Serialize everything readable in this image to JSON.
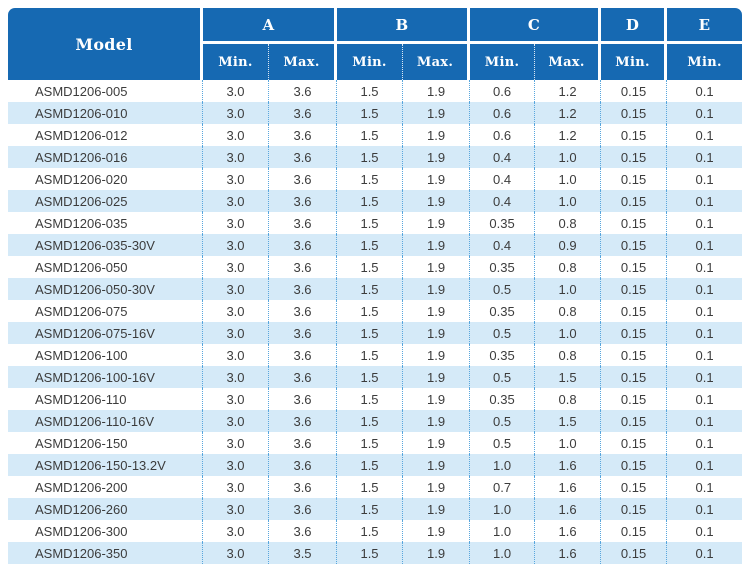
{
  "table": {
    "model_header": "Model",
    "groups": [
      {
        "label": "A",
        "subs": [
          "Min.",
          "Max."
        ]
      },
      {
        "label": "B",
        "subs": [
          "Min.",
          "Max."
        ]
      },
      {
        "label": "C",
        "subs": [
          "Min.",
          "Max."
        ]
      },
      {
        "label": "D",
        "subs": [
          "Min."
        ]
      },
      {
        "label": "E",
        "subs": [
          "Min."
        ]
      }
    ],
    "rows": [
      {
        "model": "ASMD1206-005",
        "values": [
          "3.0",
          "3.6",
          "1.5",
          "1.9",
          "0.6",
          "1.2",
          "0.15",
          "0.1"
        ]
      },
      {
        "model": "ASMD1206-010",
        "values": [
          "3.0",
          "3.6",
          "1.5",
          "1.9",
          "0.6",
          "1.2",
          "0.15",
          "0.1"
        ]
      },
      {
        "model": "ASMD1206-012",
        "values": [
          "3.0",
          "3.6",
          "1.5",
          "1.9",
          "0.6",
          "1.2",
          "0.15",
          "0.1"
        ]
      },
      {
        "model": "ASMD1206-016",
        "values": [
          "3.0",
          "3.6",
          "1.5",
          "1.9",
          "0.4",
          "1.0",
          "0.15",
          "0.1"
        ]
      },
      {
        "model": "ASMD1206-020",
        "values": [
          "3.0",
          "3.6",
          "1.5",
          "1.9",
          "0.4",
          "1.0",
          "0.15",
          "0.1"
        ]
      },
      {
        "model": "ASMD1206-025",
        "values": [
          "3.0",
          "3.6",
          "1.5",
          "1.9",
          "0.4",
          "1.0",
          "0.15",
          "0.1"
        ]
      },
      {
        "model": "ASMD1206-035",
        "values": [
          "3.0",
          "3.6",
          "1.5",
          "1.9",
          "0.35",
          "0.8",
          "0.15",
          "0.1"
        ]
      },
      {
        "model": "ASMD1206-035-30V",
        "values": [
          "3.0",
          "3.6",
          "1.5",
          "1.9",
          "0.4",
          "0.9",
          "0.15",
          "0.1"
        ]
      },
      {
        "model": "ASMD1206-050",
        "values": [
          "3.0",
          "3.6",
          "1.5",
          "1.9",
          "0.35",
          "0.8",
          "0.15",
          "0.1"
        ]
      },
      {
        "model": "ASMD1206-050-30V",
        "values": [
          "3.0",
          "3.6",
          "1.5",
          "1.9",
          "0.5",
          "1.0",
          "0.15",
          "0.1"
        ]
      },
      {
        "model": "ASMD1206-075",
        "values": [
          "3.0",
          "3.6",
          "1.5",
          "1.9",
          "0.35",
          "0.8",
          "0.15",
          "0.1"
        ]
      },
      {
        "model": "ASMD1206-075-16V",
        "values": [
          "3.0",
          "3.6",
          "1.5",
          "1.9",
          "0.5",
          "1.0",
          "0.15",
          "0.1"
        ]
      },
      {
        "model": "ASMD1206-100",
        "values": [
          "3.0",
          "3.6",
          "1.5",
          "1.9",
          "0.35",
          "0.8",
          "0.15",
          "0.1"
        ]
      },
      {
        "model": "ASMD1206-100-16V",
        "values": [
          "3.0",
          "3.6",
          "1.5",
          "1.9",
          "0.5",
          "1.5",
          "0.15",
          "0.1"
        ]
      },
      {
        "model": "ASMD1206-110",
        "values": [
          "3.0",
          "3.6",
          "1.5",
          "1.9",
          "0.35",
          "0.8",
          "0.15",
          "0.1"
        ]
      },
      {
        "model": "ASMD1206-110-16V",
        "values": [
          "3.0",
          "3.6",
          "1.5",
          "1.9",
          "0.5",
          "1.5",
          "0.15",
          "0.1"
        ]
      },
      {
        "model": "ASMD1206-150",
        "values": [
          "3.0",
          "3.6",
          "1.5",
          "1.9",
          "0.5",
          "1.0",
          "0.15",
          "0.1"
        ]
      },
      {
        "model": "ASMD1206-150-13.2V",
        "values": [
          "3.0",
          "3.6",
          "1.5",
          "1.9",
          "1.0",
          "1.6",
          "0.15",
          "0.1"
        ]
      },
      {
        "model": "ASMD1206-200",
        "values": [
          "3.0",
          "3.6",
          "1.5",
          "1.9",
          "0.7",
          "1.6",
          "0.15",
          "0.1"
        ]
      },
      {
        "model": "ASMD1206-260",
        "values": [
          "3.0",
          "3.6",
          "1.5",
          "1.9",
          "1.0",
          "1.6",
          "0.15",
          "0.1"
        ]
      },
      {
        "model": "ASMD1206-300",
        "values": [
          "3.0",
          "3.6",
          "1.5",
          "1.9",
          "1.0",
          "1.6",
          "0.15",
          "0.1"
        ]
      },
      {
        "model": "ASMD1206-350",
        "values": [
          "3.0",
          "3.5",
          "1.5",
          "1.9",
          "1.0",
          "1.6",
          "0.15",
          "0.1"
        ]
      }
    ]
  },
  "colors": {
    "header_bg": "#1669b2",
    "header_text": "#ffffff",
    "row_alt_bg": "#d5eaf8",
    "dotted_separator": "#58a6dd",
    "data_text": "#3c3c3c"
  }
}
